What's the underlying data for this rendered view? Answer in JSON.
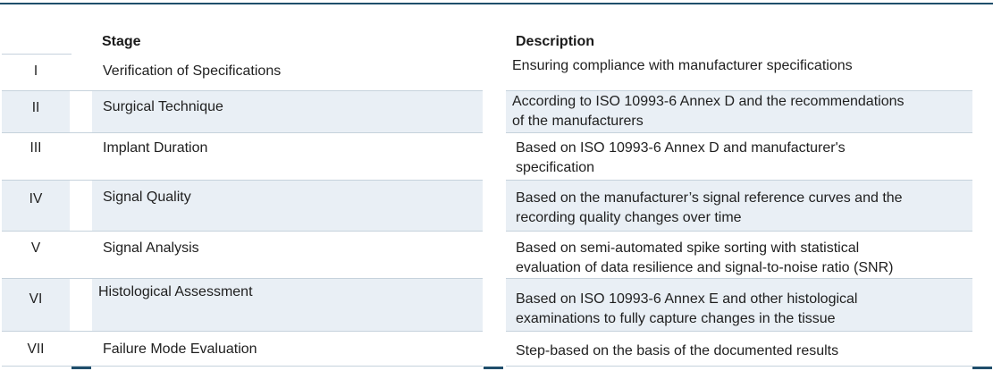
{
  "table": {
    "headers": {
      "stage": "Stage",
      "description": "Description"
    },
    "rows": [
      {
        "num": "I",
        "stage": "Verification of Specifications",
        "description": [
          "Ensuring compliance with manufacturer specifications"
        ]
      },
      {
        "num": "II",
        "stage": "Surgical Technique",
        "description": [
          "According to ISO 10993-6 Annex D and the recommendations",
          "of the manufacturers"
        ]
      },
      {
        "num": "III",
        "stage": "Implant Duration",
        "description": [
          "Based on ISO 10993-6 Annex D and manufacturer's",
          "specification"
        ]
      },
      {
        "num": "IV",
        "stage": "Signal Quality",
        "description": [
          "Based on the manufacturer’s signal reference curves and the",
          "recording quality changes over time"
        ]
      },
      {
        "num": "V",
        "stage": "Signal Analysis",
        "description": [
          "Based on semi-automated spike sorting with statistical",
          "evaluation of data resilience and signal-to-noise ratio (SNR)"
        ]
      },
      {
        "num": "VI",
        "stage": "Histological Assessment",
        "description": [
          "Based on ISO 10993-6 Annex E and other histological",
          "examinations to fully capture changes in the tissue"
        ]
      },
      {
        "num": "VII",
        "stage": "Failure Mode Evaluation",
        "description": [
          "Step-based on the basis of the documented results"
        ]
      }
    ]
  },
  "colors": {
    "accent": "#1f4e6b",
    "row_shade": "#e9eff5",
    "separator": "#c6d2dc"
  }
}
